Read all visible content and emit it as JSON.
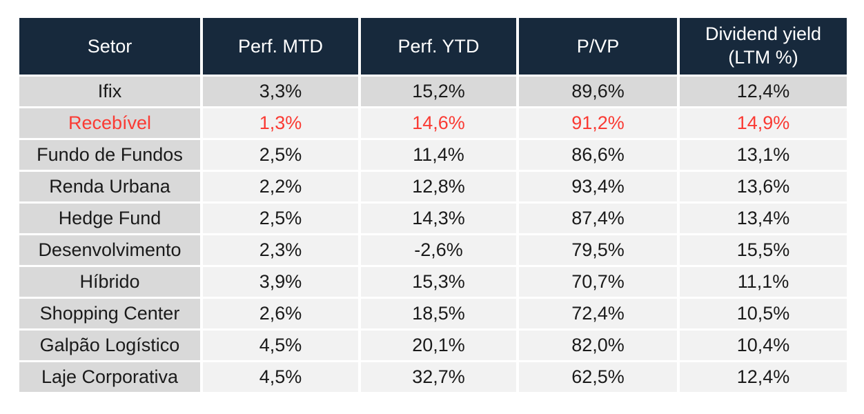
{
  "colors": {
    "header_bg": "#17293c",
    "header_text": "#ffffff",
    "row_gray": "#d9d9d9",
    "row_light": "#f2f2f2",
    "text": "#1a1a1a",
    "highlight_text": "#fa3a33"
  },
  "chart_data": {
    "type": "table",
    "columns": [
      "Setor",
      "Perf. MTD",
      "Perf. YTD",
      "P/VP",
      "Dividend yield (LTM %)"
    ],
    "rows": [
      {
        "label": "Ifix",
        "values": [
          "3,3%",
          "15,2%",
          "89,6%",
          "12,4%"
        ],
        "shade": "gray",
        "highlight": false
      },
      {
        "label": "Recebível",
        "values": [
          "1,3%",
          "14,6%",
          "91,2%",
          "14,9%"
        ],
        "shade": "light",
        "highlight": true
      },
      {
        "label": "Fundo de Fundos",
        "values": [
          "2,5%",
          "11,4%",
          "86,6%",
          "13,1%"
        ],
        "shade": "light",
        "highlight": false
      },
      {
        "label": "Renda Urbana",
        "values": [
          "2,2%",
          "12,8%",
          "93,4%",
          "13,6%"
        ],
        "shade": "light",
        "highlight": false
      },
      {
        "label": "Hedge Fund",
        "values": [
          "2,5%",
          "14,3%",
          "87,4%",
          "13,4%"
        ],
        "shade": "light",
        "highlight": false
      },
      {
        "label": "Desenvolvimento",
        "values": [
          "2,3%",
          "-2,6%",
          "79,5%",
          "15,5%"
        ],
        "shade": "light",
        "highlight": false
      },
      {
        "label": "Híbrido",
        "values": [
          "3,9%",
          "15,3%",
          "70,7%",
          "11,1%"
        ],
        "shade": "light",
        "highlight": false
      },
      {
        "label": "Shopping Center",
        "values": [
          "2,6%",
          "18,5%",
          "72,4%",
          "10,5%"
        ],
        "shade": "light",
        "highlight": false
      },
      {
        "label": "Galpão Logístico",
        "values": [
          "4,5%",
          "20,1%",
          "82,0%",
          "10,4%"
        ],
        "shade": "light",
        "highlight": false
      },
      {
        "label": "Laje Corporativa",
        "values": [
          "4,5%",
          "32,7%",
          "62,5%",
          "12,4%"
        ],
        "shade": "light",
        "highlight": false
      }
    ]
  }
}
